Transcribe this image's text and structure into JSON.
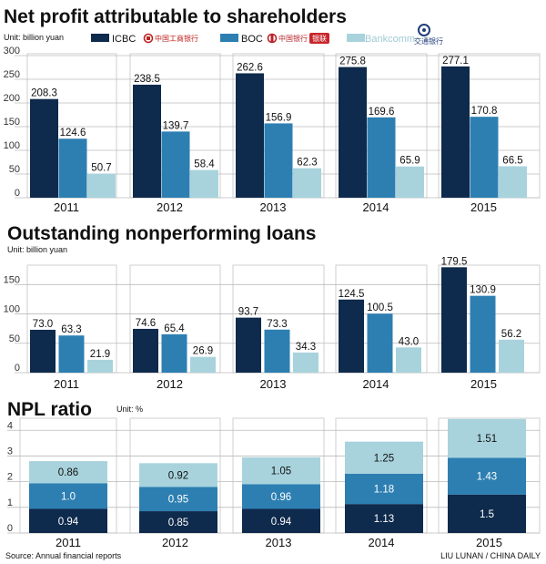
{
  "colors": {
    "icbc": "#0e2a4c",
    "boc": "#2d7fb2",
    "bankcomm": "#a8d3dd",
    "grid": "#bbbbbb",
    "icbc_logo": "#c0221f",
    "boc_logo": "#b8242a",
    "bankcomm_logo": "#1f3e7a"
  },
  "legend": {
    "unit": "Unit: billion yuan",
    "icbc": "ICBC",
    "boc": "BOC",
    "bankcomm": "Bankcomm",
    "icbc_logo_text": "中国工商银行",
    "boc_logo_text": "中国银行",
    "boc_logo_badge": "银联",
    "bankcomm_logo_text": "交通银行"
  },
  "chart_data": [
    {
      "type": "bar",
      "title": "Net profit attributable to shareholders",
      "unit": "Unit: billion yuan",
      "categories": [
        "2011",
        "2012",
        "2013",
        "2014",
        "2015"
      ],
      "ylim": [
        0,
        300
      ],
      "yticks": [
        "0",
        "50",
        "100",
        "150",
        "200",
        "250",
        "300"
      ],
      "series": [
        {
          "name": "ICBC",
          "values": [
            208.3,
            238.5,
            262.6,
            275.8,
            277.1
          ],
          "labels": [
            "208.3",
            "238.5",
            "262.6",
            "275.8",
            "277.1"
          ]
        },
        {
          "name": "BOC",
          "values": [
            124.6,
            139.7,
            156.9,
            169.6,
            170.8
          ],
          "labels": [
            "124.6",
            "139.7",
            "156.9",
            "169.6",
            "170.8"
          ]
        },
        {
          "name": "Bankcomm",
          "values": [
            50.7,
            58.4,
            62.3,
            65.9,
            66.5
          ],
          "labels": [
            "50.7",
            "58.4",
            "62.3",
            "65.9",
            "66.5"
          ]
        }
      ]
    },
    {
      "type": "bar",
      "title": "Outstanding nonperforming loans",
      "unit": "Unit: billion yuan",
      "categories": [
        "2011",
        "2012",
        "2013",
        "2014",
        "2015"
      ],
      "ylim": [
        0,
        180
      ],
      "yticks": [
        "0",
        "50",
        "100",
        "150"
      ],
      "series": [
        {
          "name": "ICBC",
          "values": [
            73.0,
            74.6,
            93.7,
            124.5,
            179.5
          ],
          "labels": [
            "73.0",
            "74.6",
            "93.7",
            "124.5",
            "179.5"
          ]
        },
        {
          "name": "BOC",
          "values": [
            63.3,
            65.4,
            73.3,
            100.5,
            130.9
          ],
          "labels": [
            "63.3",
            "65.4",
            "73.3",
            "100.5",
            "130.9"
          ]
        },
        {
          "name": "Bankcomm",
          "values": [
            21.9,
            26.9,
            34.3,
            43.0,
            56.2
          ],
          "labels": [
            "21.9",
            "26.9",
            "34.3",
            "43.0",
            "56.2"
          ]
        }
      ]
    },
    {
      "type": "stacked_bar",
      "title": "NPL ratio",
      "unit": "Unit: %",
      "categories": [
        "2011",
        "2012",
        "2013",
        "2014",
        "2015"
      ],
      "ylim": [
        0,
        4.4
      ],
      "yticks": [
        "0",
        "1",
        "2",
        "3",
        "4"
      ],
      "series": [
        {
          "name": "ICBC",
          "values": [
            0.94,
            0.85,
            0.94,
            1.13,
            1.5
          ],
          "labels": [
            "0.94",
            "0.85",
            "0.94",
            "1.13",
            "1.5"
          ]
        },
        {
          "name": "BOC",
          "values": [
            1.0,
            0.95,
            0.96,
            1.18,
            1.43
          ],
          "labels": [
            "1.0",
            "0.95",
            "0.96",
            "1.18",
            "1.43"
          ]
        },
        {
          "name": "Bankcomm",
          "values": [
            0.86,
            0.92,
            1.05,
            1.25,
            1.51
          ],
          "labels": [
            "0.86",
            "0.92",
            "1.05",
            "1.25",
            "1.51"
          ]
        }
      ]
    }
  ],
  "footer": {
    "source": "Source: Annual financial reports",
    "credit": "LIU LUNAN / CHINA DAILY"
  }
}
